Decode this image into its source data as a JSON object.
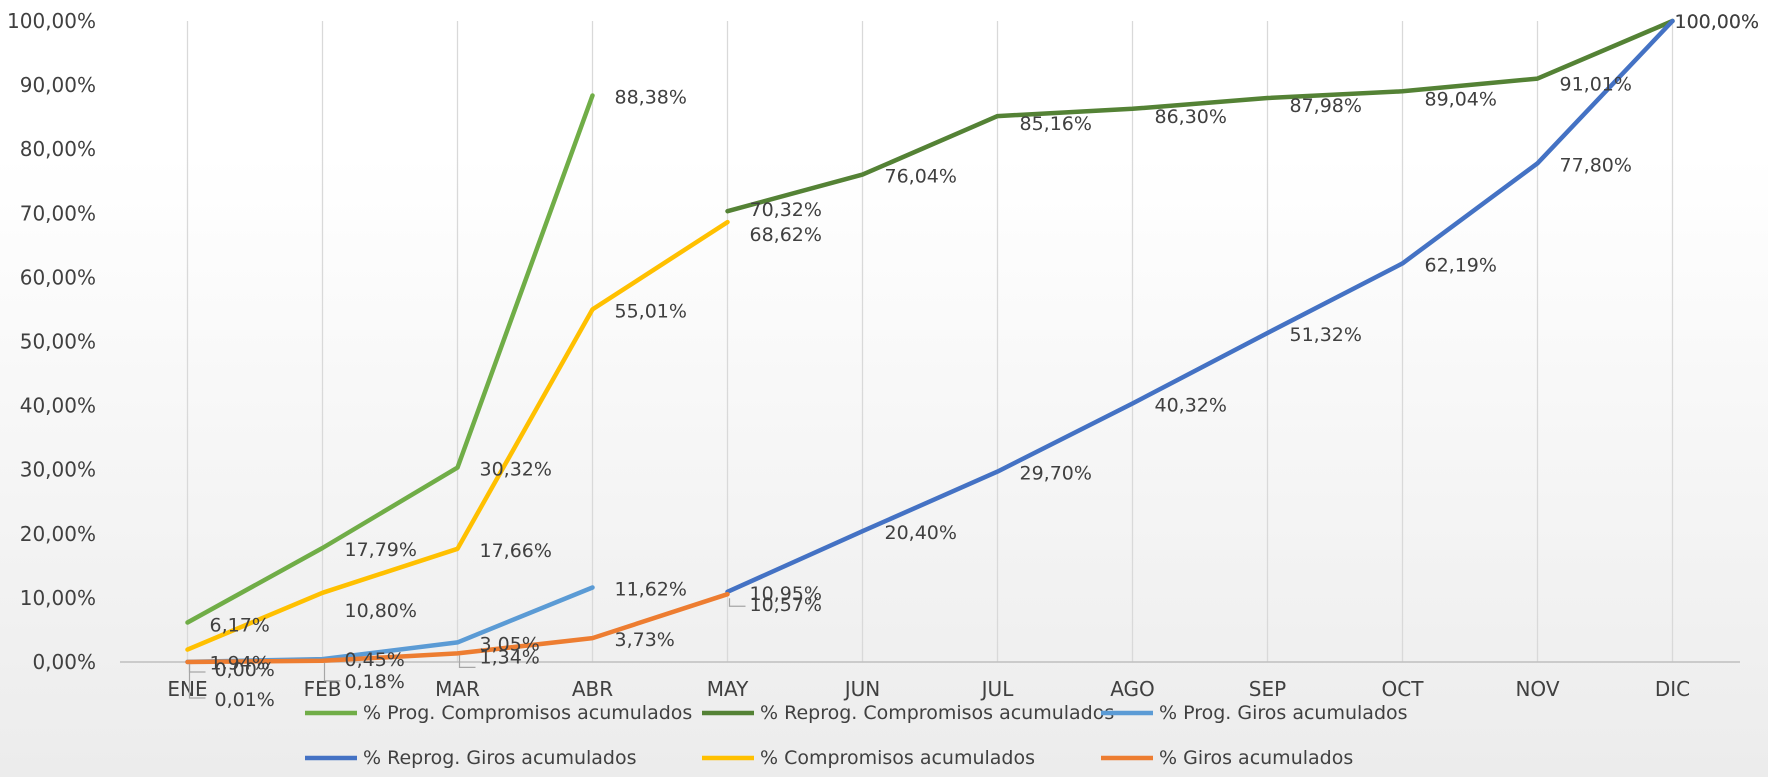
{
  "chart_data": {
    "type": "line",
    "categories": [
      "ENE",
      "FEB",
      "MAR",
      "ABR",
      "MAY",
      "JUN",
      "JUL",
      "AGO",
      "SEP",
      "OCT",
      "NOV",
      "DIC"
    ],
    "y_ticks": [
      "0,00%",
      "10,00%",
      "20,00%",
      "30,00%",
      "40,00%",
      "50,00%",
      "60,00%",
      "70,00%",
      "80,00%",
      "90,00%",
      "100,00%"
    ],
    "ylim": [
      0,
      100
    ],
    "grid": "vertical",
    "legend_position": "bottom",
    "series": [
      {
        "name": "% Prog. Compromisos acumulados",
        "color": "#70ad47",
        "values": [
          6.17,
          17.79,
          30.32,
          88.38,
          null,
          null,
          null,
          null,
          null,
          null,
          null,
          null
        ],
        "labels": [
          "6,17%",
          "17,79%",
          "30,32%",
          "88,38%",
          null,
          null,
          null,
          null,
          null,
          null,
          null,
          null
        ]
      },
      {
        "name": "% Reprog. Compromisos acumulados",
        "color": "#548235",
        "values": [
          null,
          null,
          null,
          null,
          70.32,
          76.04,
          85.16,
          86.3,
          87.98,
          89.04,
          91.01,
          100.0
        ],
        "labels": [
          null,
          null,
          null,
          null,
          "70,32%",
          "76,04%",
          "85,16%",
          "86,30%",
          "87,98%",
          "89,04%",
          "91,01%",
          "100,00%"
        ]
      },
      {
        "name": "% Prog. Giros acumulados",
        "color": "#5b9bd5",
        "values": [
          0.01,
          0.45,
          3.05,
          11.62,
          null,
          null,
          null,
          null,
          null,
          null,
          null,
          null
        ],
        "labels": [
          "0,01%",
          "0,45%",
          "3,05%",
          "11,62%",
          null,
          null,
          null,
          null,
          null,
          null,
          null,
          null
        ]
      },
      {
        "name": "% Reprog. Giros acumulados",
        "color": "#4472c4",
        "values": [
          null,
          null,
          null,
          null,
          10.95,
          20.4,
          29.7,
          40.32,
          51.32,
          62.19,
          77.8,
          100.0
        ],
        "labels": [
          null,
          null,
          null,
          null,
          "10,95%",
          "20,40%",
          "29,70%",
          "40,32%",
          "51,32%",
          "62,19%",
          "77,80%",
          "100,00%"
        ]
      },
      {
        "name": "% Compromisos acumulados",
        "color": "#ffc000",
        "values": [
          1.94,
          10.8,
          17.66,
          55.01,
          68.62,
          null,
          null,
          null,
          null,
          null,
          null,
          null
        ],
        "labels": [
          "1,94%",
          "10,80%",
          "17,66%",
          "55,01%",
          "68,62%",
          null,
          null,
          null,
          null,
          null,
          null,
          null
        ]
      },
      {
        "name": "% Giros acumulados",
        "color": "#ed7d31",
        "values": [
          0.0,
          0.18,
          1.34,
          3.73,
          10.57,
          null,
          null,
          null,
          null,
          null,
          null,
          null
        ],
        "labels": [
          "0,00%",
          "0,18%",
          "1,34%",
          "3,73%",
          "10,57%",
          null,
          null,
          null,
          null,
          null,
          null,
          null
        ]
      }
    ]
  }
}
